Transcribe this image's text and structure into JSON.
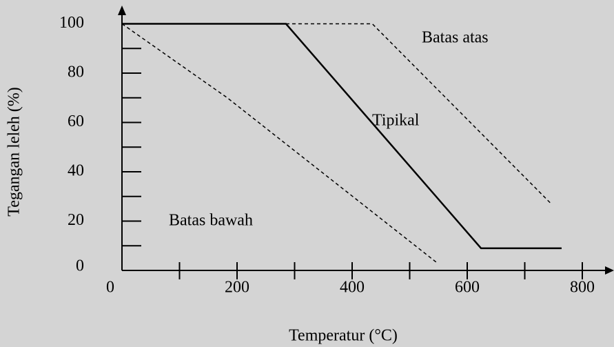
{
  "chart_data": {
    "type": "line",
    "x_label": "Temperatur (°C)",
    "y_label": "Tegangan leleh (%)",
    "xlim": [
      0,
      850
    ],
    "ylim": [
      0,
      105
    ],
    "xticks": [
      0,
      200,
      400,
      600,
      800
    ],
    "xminorticks": [
      100,
      300,
      500,
      700
    ],
    "yticks": [
      0,
      20,
      40,
      60,
      80,
      100
    ],
    "yminorticks": [
      10,
      30,
      50,
      70,
      90
    ],
    "series": [
      {
        "name": "Batas atas",
        "color": "#000000",
        "style": "dashed",
        "x": [
          285,
          435,
          746
        ],
        "values": [
          100,
          100,
          27
        ]
      },
      {
        "name": "Tipikal",
        "color": "#000000",
        "style": "solid",
        "x": [
          0,
          285,
          624,
          764
        ],
        "values": [
          100,
          100,
          9,
          9
        ]
      },
      {
        "name": "Batas bawah",
        "color": "#000000",
        "style": "dashed",
        "x": [
          0,
          183,
          548
        ],
        "values": [
          100,
          70,
          3
        ]
      }
    ]
  }
}
